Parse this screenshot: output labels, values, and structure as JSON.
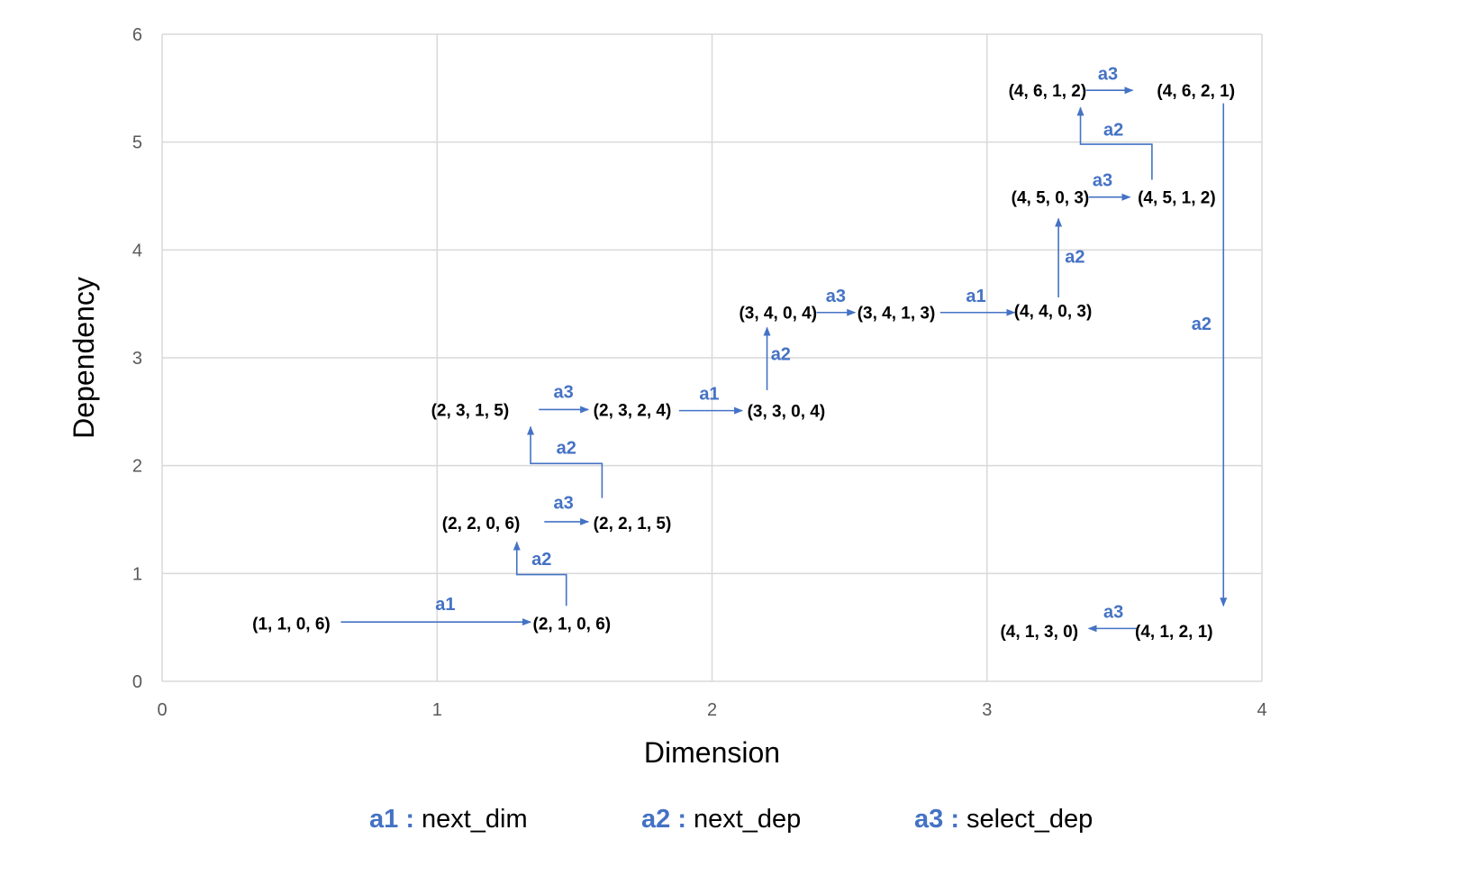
{
  "chart_data": {
    "type": "scatter",
    "title": "",
    "xlabel": "Dimension",
    "ylabel": "Dependency",
    "xlim": [
      0,
      4
    ],
    "ylim": [
      0,
      6
    ],
    "xticks": [
      "0",
      "1",
      "2",
      "3",
      "4"
    ],
    "yticks": [
      "0",
      "1",
      "2",
      "3",
      "4",
      "5",
      "6"
    ],
    "grid": true,
    "accent_color": "#4472C4",
    "states": [
      {
        "id": "s1",
        "label": "(1, 1, 0, 6)",
        "x": 0.47,
        "y": 0.54
      },
      {
        "id": "s2",
        "label": "(2, 1, 0, 6)",
        "x": 1.49,
        "y": 0.54
      },
      {
        "id": "s3",
        "label": "(2, 2, 0, 6)",
        "x": 1.16,
        "y": 1.47
      },
      {
        "id": "s4",
        "label": "(2, 2, 1, 5)",
        "x": 1.71,
        "y": 1.47
      },
      {
        "id": "s5",
        "label": "(2, 3, 1, 5)",
        "x": 1.12,
        "y": 2.52
      },
      {
        "id": "s6",
        "label": "(2, 3, 2, 4)",
        "x": 1.71,
        "y": 2.52
      },
      {
        "id": "s7",
        "label": "(3, 3, 0, 4)",
        "x": 2.27,
        "y": 2.51
      },
      {
        "id": "s8",
        "label": "(3, 4, 0, 4)",
        "x": 2.24,
        "y": 3.42
      },
      {
        "id": "s9",
        "label": "(3, 4, 1, 3)",
        "x": 2.67,
        "y": 3.42
      },
      {
        "id": "s10",
        "label": "(4, 4, 0, 3)",
        "x": 3.24,
        "y": 3.44
      },
      {
        "id": "s11",
        "label": "(4, 5, 0, 3)",
        "x": 3.23,
        "y": 4.49
      },
      {
        "id": "s12",
        "label": "(4, 5, 1, 2)",
        "x": 3.69,
        "y": 4.49
      },
      {
        "id": "s13",
        "label": "(4, 6, 1, 2)",
        "x": 3.22,
        "y": 5.48
      },
      {
        "id": "s14",
        "label": "(4, 6, 2, 1)",
        "x": 3.76,
        "y": 5.48
      },
      {
        "id": "s15",
        "label": "(4, 1, 2, 1)",
        "x": 3.68,
        "y": 0.47
      },
      {
        "id": "s16",
        "label": "(4, 1, 3, 0)",
        "x": 3.19,
        "y": 0.47
      }
    ],
    "transitions": [
      {
        "action": "a1",
        "path": [
          [
            0.65,
            0.55
          ],
          [
            1.34,
            0.55
          ]
        ],
        "label_at": [
          1.03,
          0.66
        ]
      },
      {
        "action": "a2",
        "path": [
          [
            1.47,
            0.7
          ],
          [
            1.47,
            0.99
          ],
          [
            1.29,
            0.99
          ],
          [
            1.29,
            1.29
          ]
        ],
        "label_at": [
          1.38,
          1.08
        ]
      },
      {
        "action": "a3",
        "path": [
          [
            1.39,
            1.48
          ],
          [
            1.55,
            1.48
          ]
        ],
        "label_at": [
          1.46,
          1.6
        ]
      },
      {
        "action": "a2",
        "path": [
          [
            1.6,
            1.7
          ],
          [
            1.6,
            2.02
          ],
          [
            1.34,
            2.02
          ],
          [
            1.34,
            2.36
          ]
        ],
        "label_at": [
          1.47,
          2.11
        ]
      },
      {
        "action": "a3",
        "path": [
          [
            1.37,
            2.52
          ],
          [
            1.55,
            2.52
          ]
        ],
        "label_at": [
          1.46,
          2.63
        ]
      },
      {
        "action": "a1",
        "path": [
          [
            1.88,
            2.51
          ],
          [
            2.11,
            2.51
          ]
        ],
        "label_at": [
          1.99,
          2.61
        ]
      },
      {
        "action": "a2",
        "path": [
          [
            2.2,
            2.7
          ],
          [
            2.2,
            3.28
          ]
        ],
        "label_at": [
          2.25,
          2.98
        ]
      },
      {
        "action": "a3",
        "path": [
          [
            2.38,
            3.42
          ],
          [
            2.52,
            3.42
          ]
        ],
        "label_at": [
          2.45,
          3.52
        ]
      },
      {
        "action": "a1",
        "path": [
          [
            2.83,
            3.42
          ],
          [
            3.1,
            3.42
          ]
        ],
        "label_at": [
          2.96,
          3.52
        ]
      },
      {
        "action": "a2",
        "path": [
          [
            3.26,
            3.56
          ],
          [
            3.26,
            4.29
          ]
        ],
        "label_at": [
          3.32,
          3.88
        ]
      },
      {
        "action": "a3",
        "path": [
          [
            3.37,
            4.49
          ],
          [
            3.52,
            4.49
          ]
        ],
        "label_at": [
          3.42,
          4.59
        ]
      },
      {
        "action": "a2",
        "path": [
          [
            3.6,
            4.65
          ],
          [
            3.6,
            4.98
          ],
          [
            3.34,
            4.98
          ],
          [
            3.34,
            5.32
          ]
        ],
        "label_at": [
          3.46,
          5.06
        ]
      },
      {
        "action": "a3",
        "path": [
          [
            3.36,
            5.48
          ],
          [
            3.53,
            5.48
          ]
        ],
        "label_at": [
          3.44,
          5.58
        ]
      },
      {
        "action": "a2",
        "path": [
          [
            3.86,
            5.36
          ],
          [
            3.86,
            0.7
          ]
        ],
        "label_at": [
          3.78,
          3.26
        ]
      },
      {
        "action": "a3",
        "path": [
          [
            3.55,
            0.49
          ],
          [
            3.37,
            0.49
          ]
        ],
        "label_at": [
          3.46,
          0.59
        ]
      }
    ]
  },
  "legend": [
    {
      "key": "a1 :",
      "desc": "next_dim"
    },
    {
      "key": "a2 :",
      "desc": "next_dep"
    },
    {
      "key": "a3 :",
      "desc": "select_dep"
    }
  ]
}
